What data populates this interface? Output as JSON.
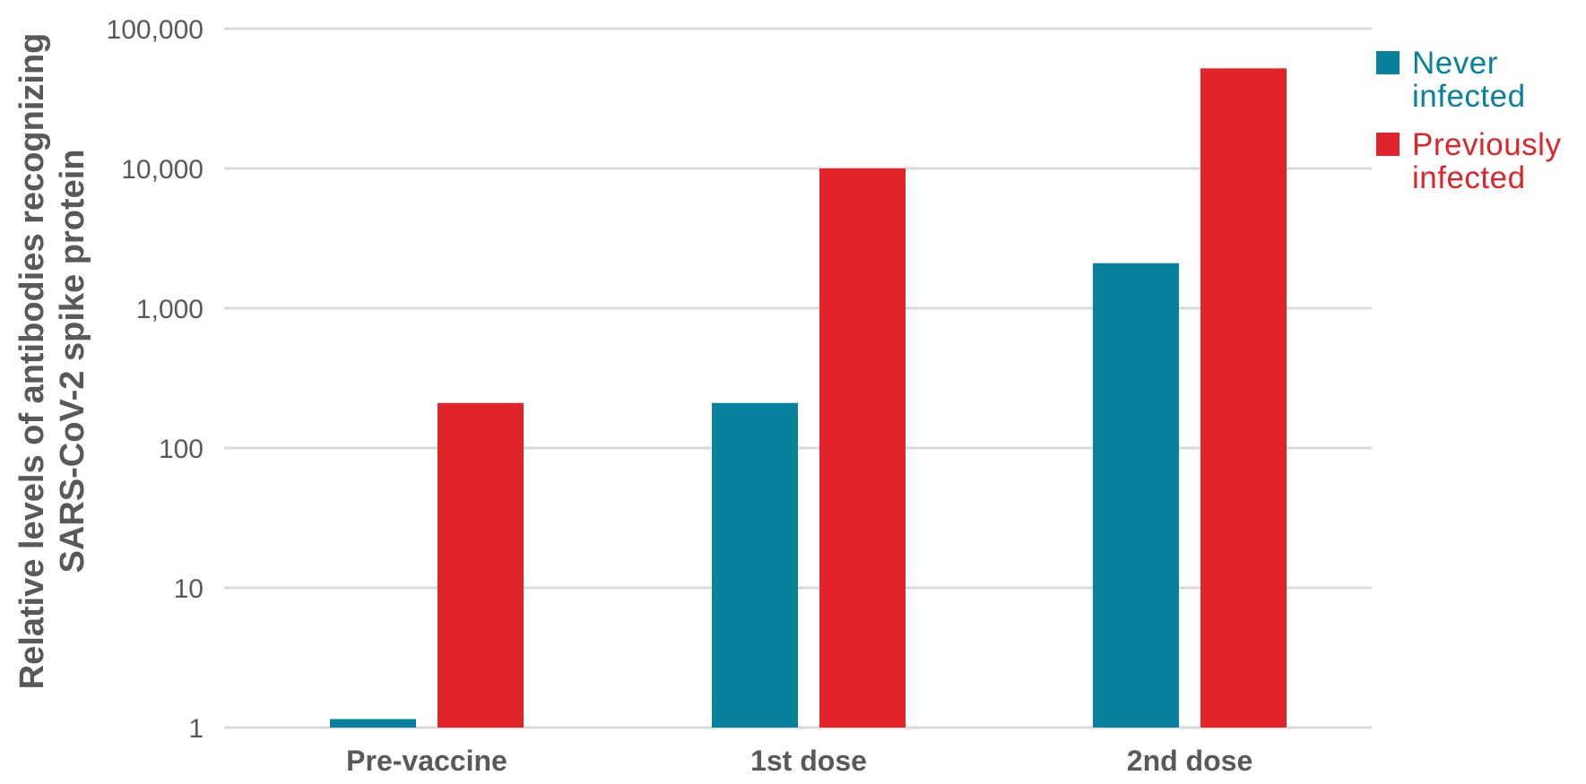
{
  "chart_data": {
    "type": "bar",
    "scale": "log",
    "categories": [
      "Pre-vaccine",
      "1st dose",
      "2nd dose"
    ],
    "series": [
      {
        "name": "Never infected",
        "color": "#08829c",
        "values": [
          1.15,
          210,
          2100
        ]
      },
      {
        "name": "Previously infected",
        "color": "#e02429",
        "values": [
          210,
          10000,
          52000
        ]
      }
    ],
    "legend": {
      "position": "right",
      "entries": [
        {
          "lines": [
            "Never",
            "infected"
          ],
          "color": "#08829c"
        },
        {
          "lines": [
            "Previously",
            "infected"
          ],
          "color": "#e02429"
        }
      ]
    },
    "ylabel_lines": [
      "Relative levels of antibodies recognizing",
      "SARS-CoV-2 spike protein"
    ],
    "yticks": [
      {
        "value": 1,
        "label": "1"
      },
      {
        "value": 10,
        "label": "10"
      },
      {
        "value": 100,
        "label": "100"
      },
      {
        "value": 1000,
        "label": "1,000"
      },
      {
        "value": 10000,
        "label": "10,000"
      },
      {
        "value": 100000,
        "label": "100,000"
      }
    ],
    "ylim": [
      1,
      100000
    ],
    "grid": true
  }
}
